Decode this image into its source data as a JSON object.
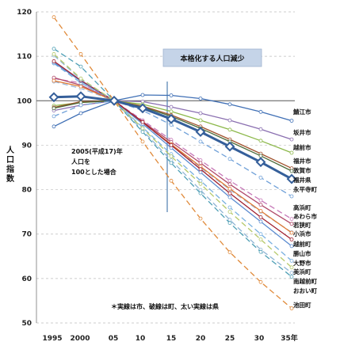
{
  "chart_data": {
    "type": "line",
    "title": "本格化する人口減少",
    "ylabel": "人口指数",
    "ylim": [
      50,
      120
    ],
    "yticks": [
      50,
      60,
      70,
      80,
      90,
      100,
      110,
      120
    ],
    "grid": true,
    "categories": [
      "1995",
      "2000",
      "05",
      "10",
      "15",
      "20",
      "25",
      "30",
      "35年"
    ],
    "annotation_base": "2005(平成17)年\n人口を\n100とした場合",
    "note": "＊実線は市、破線は町、太い実線は県",
    "series": [
      {
        "name": "鯖江市",
        "style": "city",
        "color": "#3f6fb5",
        "values": [
          94.2,
          97.2,
          100,
          101.3,
          101.2,
          100.5,
          99.2,
          97.5,
          95.5
        ]
      },
      {
        "name": "坂井市",
        "style": "city",
        "color": "#8a6fb0",
        "values": [
          97.8,
          99.0,
          100,
          99.8,
          98.6,
          97.2,
          95.6,
          93.6,
          91.3
        ]
      },
      {
        "name": "越前市",
        "style": "city",
        "color": "#8cb84a",
        "values": [
          98.9,
          99.6,
          100,
          99.2,
          97.6,
          95.6,
          93.5,
          91.0,
          88.3
        ]
      },
      {
        "name": "福井市",
        "style": "city",
        "color": "#a0522d",
        "values": [
          98.5,
          99.8,
          100,
          98.8,
          96.8,
          94.2,
          91.3,
          88.1,
          84.8
        ]
      },
      {
        "name": "敦賀市",
        "style": "city",
        "color": "#4b6b3a",
        "values": [
          98.3,
          99.6,
          100,
          98.6,
          96.5,
          93.8,
          90.8,
          87.6,
          84.2
        ]
      },
      {
        "name": "福井県",
        "style": "pref",
        "color": "#355f9a",
        "values": [
          100.8,
          101.0,
          100,
          98.3,
          95.9,
          93.0,
          89.7,
          86.2,
          82.4
        ]
      },
      {
        "name": "永平寺町",
        "style": "town",
        "color": "#6fa0d8",
        "values": [
          96.5,
          99.0,
          100,
          97.8,
          94.6,
          90.8,
          86.9,
          82.7,
          78.5
        ]
      },
      {
        "name": "高浜町",
        "style": "town",
        "color": "#c779b8",
        "values": [
          105.0,
          104.0,
          100,
          95.6,
          91.2,
          86.6,
          82.0,
          77.6,
          73.4
        ]
      },
      {
        "name": "あわら市",
        "style": "city",
        "color": "#b04a6a",
        "values": [
          105.2,
          103.5,
          100,
          95.3,
          90.7,
          86.0,
          81.2,
          76.6,
          72.3
        ]
      },
      {
        "name": "若狭町",
        "style": "town",
        "color": "#9ab5d8",
        "values": [
          104.3,
          102.8,
          100,
          95.0,
          90.0,
          85.0,
          80.0,
          75.0,
          70.4
        ]
      },
      {
        "name": "小浜市",
        "style": "city",
        "color": "#e07830",
        "values": [
          104.5,
          103.2,
          100,
          95.1,
          90.2,
          85.2,
          80.2,
          75.2,
          70.3
        ]
      },
      {
        "name": "越前町",
        "style": "town",
        "color": "#78b0e0",
        "values": [
          108.4,
          104.0,
          100,
          94.0,
          88.0,
          82.0,
          76.0,
          70.0,
          64.0
        ]
      },
      {
        "name": "勝山市",
        "style": "city",
        "color": "#5b8bd0",
        "values": [
          108.6,
          104.4,
          100,
          94.8,
          89.4,
          83.9,
          78.3,
          72.8,
          67.3
        ]
      },
      {
        "name": "大野市",
        "style": "city",
        "color": "#a02030",
        "values": [
          108.9,
          104.6,
          100,
          95.2,
          90.0,
          84.6,
          79.2,
          73.8,
          68.8
        ]
      },
      {
        "name": "美浜町",
        "style": "town",
        "color": "#90b5d5",
        "values": [
          110.2,
          104.8,
          100,
          93.3,
          86.6,
          79.9,
          73.2,
          66.5,
          61.3
        ]
      },
      {
        "name": "南越前町",
        "style": "town",
        "color": "#b6c96a",
        "values": [
          110.5,
          105.0,
          100,
          93.8,
          87.5,
          81.3,
          75.0,
          68.8,
          62.5
        ]
      },
      {
        "name": "おおい町",
        "style": "town",
        "color": "#4e9fb5",
        "values": [
          111.7,
          107.7,
          100,
          93.0,
          86.0,
          79.2,
          72.5,
          66.0,
          60.4
        ]
      },
      {
        "name": "池田町",
        "style": "town",
        "color": "#e08a3a",
        "values": [
          118.8,
          110.5,
          100,
          90.8,
          82.0,
          73.5,
          65.9,
          59.2,
          53.3
        ]
      }
    ]
  }
}
